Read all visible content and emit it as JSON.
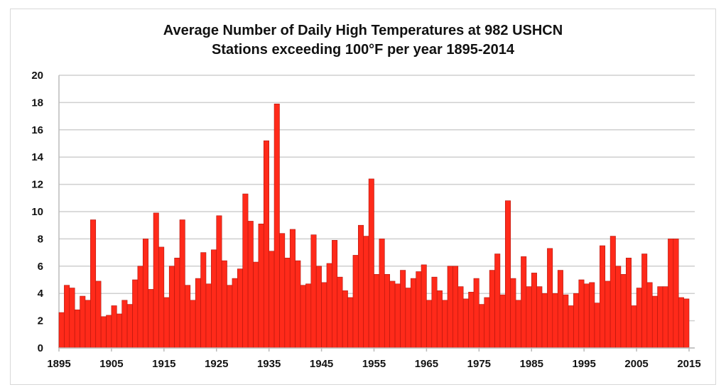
{
  "chart_data": {
    "type": "bar",
    "title": [
      "Average Number of Daily High Temperatures at 982 USHCN",
      "Stations exceeding 100°F per year 1895-2014"
    ],
    "xlabel": "",
    "ylabel": "",
    "x_start": 1895,
    "x_end": 2014,
    "xlim": [
      1895,
      2015
    ],
    "ylim": [
      0,
      20
    ],
    "grid": true,
    "bar_color": "#ff2a1a",
    "yticks": [
      "0",
      "2",
      "4",
      "6",
      "8",
      "10",
      "12",
      "14",
      "16",
      "18",
      "20"
    ],
    "xticks": [
      "1895",
      "1905",
      "1915",
      "1925",
      "1935",
      "1945",
      "1955",
      "1965",
      "1975",
      "1985",
      "1995",
      "2005",
      "2015"
    ],
    "values": [
      2.6,
      4.6,
      4.4,
      2.8,
      3.8,
      3.5,
      9.4,
      4.9,
      2.3,
      2.4,
      3.1,
      2.5,
      3.5,
      3.2,
      5.0,
      6.0,
      8.0,
      4.3,
      9.9,
      7.4,
      3.7,
      6.0,
      6.6,
      9.4,
      4.6,
      3.5,
      5.1,
      7.0,
      4.7,
      7.2,
      9.7,
      6.4,
      4.6,
      5.1,
      5.8,
      11.3,
      9.3,
      6.3,
      9.1,
      15.2,
      7.1,
      17.9,
      8.4,
      6.6,
      8.7,
      6.4,
      4.6,
      4.7,
      8.3,
      6.0,
      4.8,
      6.2,
      7.9,
      5.2,
      4.2,
      3.7,
      6.8,
      9.0,
      8.2,
      12.4,
      5.4,
      8.0,
      5.4,
      4.9,
      4.7,
      5.7,
      4.4,
      5.1,
      5.6,
      6.1,
      3.5,
      5.2,
      4.2,
      3.5,
      6.0,
      6.0,
      4.5,
      3.6,
      4.1,
      5.1,
      3.2,
      3.7,
      5.7,
      6.9,
      3.9,
      10.8,
      5.1,
      3.5,
      6.7,
      4.5,
      5.5,
      4.5,
      4.0,
      7.3,
      4.0,
      5.7,
      3.9,
      3.1,
      4.0,
      5.0,
      4.7,
      4.8,
      3.3,
      7.5,
      4.9,
      8.2,
      6.0,
      5.4,
      6.6,
      3.1,
      4.4,
      6.9,
      4.8,
      3.8,
      4.5,
      4.5,
      8.0,
      8.0,
      3.7,
      3.6
    ]
  }
}
